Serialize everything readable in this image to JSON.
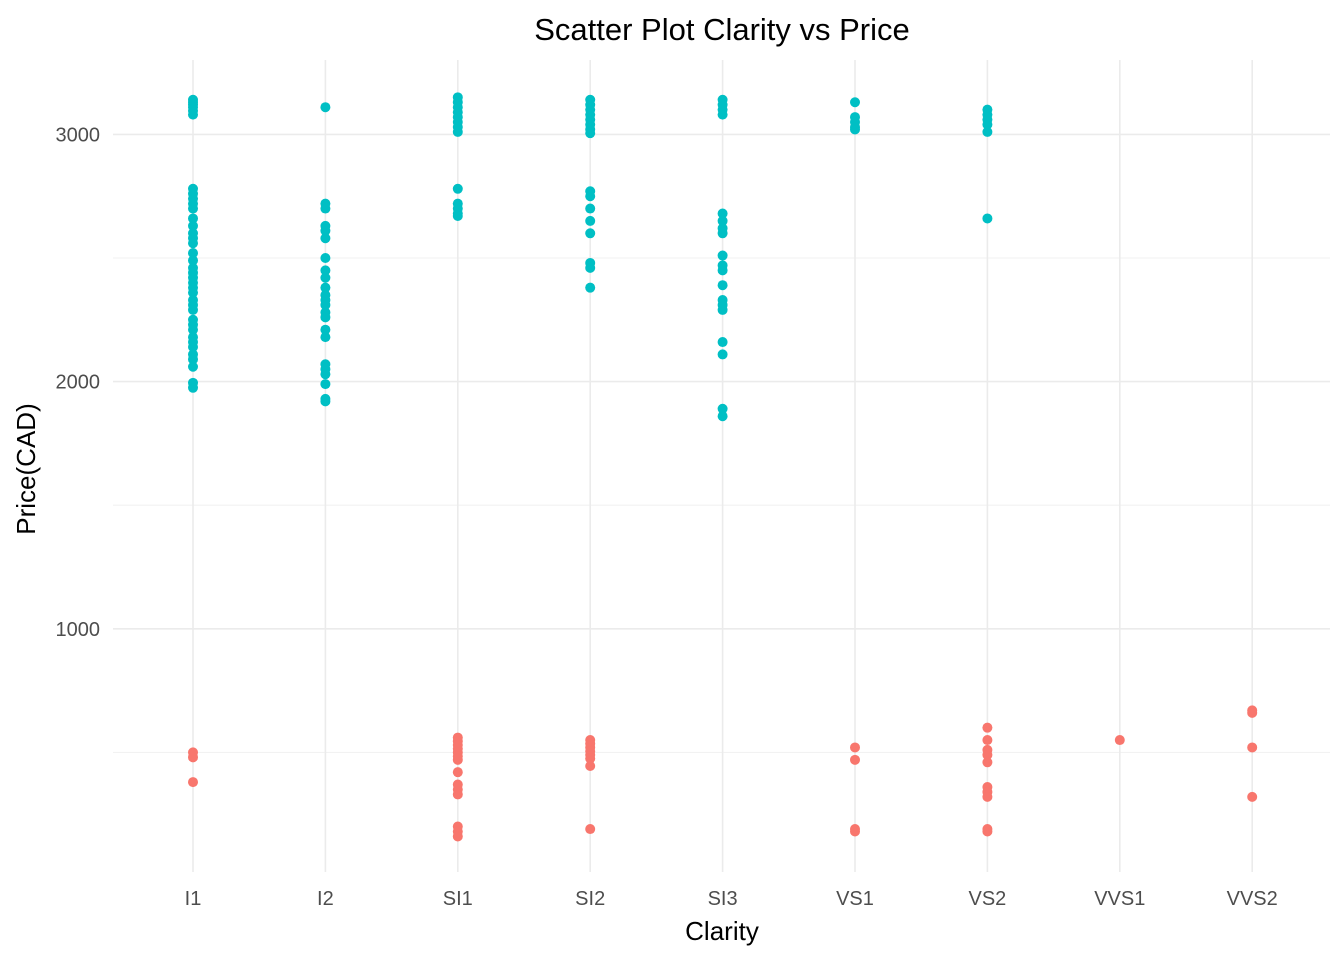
{
  "chart_data": {
    "type": "scatter",
    "title": "Scatter Plot Clarity vs Price",
    "xlabel": "Clarity",
    "ylabel": "Price(CAD)",
    "categories": [
      "I1",
      "I2",
      "SI1",
      "SI2",
      "SI3",
      "VS1",
      "VS2",
      "VVS1",
      "VVS2"
    ],
    "y_ticks": [
      1000,
      2000,
      3000
    ],
    "y_tick_labels": [
      "1000",
      "2000",
      "3000"
    ],
    "ylim": [
      50,
      3320
    ],
    "grid": true,
    "legend": "none",
    "series": [
      {
        "color": "#00BFC4",
        "points": [
          {
            "x": "I1",
            "y": 3140
          },
          {
            "x": "I1",
            "y": 3130
          },
          {
            "x": "I1",
            "y": 3120
          },
          {
            "x": "I1",
            "y": 3110
          },
          {
            "x": "I1",
            "y": 3095
          },
          {
            "x": "I1",
            "y": 3080
          },
          {
            "x": "I1",
            "y": 2780
          },
          {
            "x": "I1",
            "y": 2760
          },
          {
            "x": "I1",
            "y": 2740
          },
          {
            "x": "I1",
            "y": 2720
          },
          {
            "x": "I1",
            "y": 2700
          },
          {
            "x": "I1",
            "y": 2660
          },
          {
            "x": "I1",
            "y": 2630
          },
          {
            "x": "I1",
            "y": 2600
          },
          {
            "x": "I1",
            "y": 2580
          },
          {
            "x": "I1",
            "y": 2560
          },
          {
            "x": "I1",
            "y": 2520
          },
          {
            "x": "I1",
            "y": 2490
          },
          {
            "x": "I1",
            "y": 2460
          },
          {
            "x": "I1",
            "y": 2440
          },
          {
            "x": "I1",
            "y": 2420
          },
          {
            "x": "I1",
            "y": 2400
          },
          {
            "x": "I1",
            "y": 2380
          },
          {
            "x": "I1",
            "y": 2360
          },
          {
            "x": "I1",
            "y": 2330
          },
          {
            "x": "I1",
            "y": 2310
          },
          {
            "x": "I1",
            "y": 2290
          },
          {
            "x": "I1",
            "y": 2250
          },
          {
            "x": "I1",
            "y": 2230
          },
          {
            "x": "I1",
            "y": 2210
          },
          {
            "x": "I1",
            "y": 2180
          },
          {
            "x": "I1",
            "y": 2160
          },
          {
            "x": "I1",
            "y": 2140
          },
          {
            "x": "I1",
            "y": 2110
          },
          {
            "x": "I1",
            "y": 2090
          },
          {
            "x": "I1",
            "y": 2060
          },
          {
            "x": "I1",
            "y": 1995
          },
          {
            "x": "I1",
            "y": 1975
          },
          {
            "x": "I2",
            "y": 3110
          },
          {
            "x": "I2",
            "y": 2720
          },
          {
            "x": "I2",
            "y": 2700
          },
          {
            "x": "I2",
            "y": 2630
          },
          {
            "x": "I2",
            "y": 2610
          },
          {
            "x": "I2",
            "y": 2580
          },
          {
            "x": "I2",
            "y": 2500
          },
          {
            "x": "I2",
            "y": 2450
          },
          {
            "x": "I2",
            "y": 2420
          },
          {
            "x": "I2",
            "y": 2380
          },
          {
            "x": "I2",
            "y": 2350
          },
          {
            "x": "I2",
            "y": 2330
          },
          {
            "x": "I2",
            "y": 2310
          },
          {
            "x": "I2",
            "y": 2280
          },
          {
            "x": "I2",
            "y": 2260
          },
          {
            "x": "I2",
            "y": 2210
          },
          {
            "x": "I2",
            "y": 2180
          },
          {
            "x": "I2",
            "y": 2070
          },
          {
            "x": "I2",
            "y": 2050
          },
          {
            "x": "I2",
            "y": 2030
          },
          {
            "x": "I2",
            "y": 1990
          },
          {
            "x": "I2",
            "y": 1930
          },
          {
            "x": "I2",
            "y": 1920
          },
          {
            "x": "SI1",
            "y": 3150
          },
          {
            "x": "SI1",
            "y": 3130
          },
          {
            "x": "SI1",
            "y": 3110
          },
          {
            "x": "SI1",
            "y": 3090
          },
          {
            "x": "SI1",
            "y": 3070
          },
          {
            "x": "SI1",
            "y": 3050
          },
          {
            "x": "SI1",
            "y": 3030
          },
          {
            "x": "SI1",
            "y": 3010
          },
          {
            "x": "SI1",
            "y": 2780
          },
          {
            "x": "SI1",
            "y": 2720
          },
          {
            "x": "SI1",
            "y": 2700
          },
          {
            "x": "SI1",
            "y": 2680
          },
          {
            "x": "SI1",
            "y": 2670
          },
          {
            "x": "SI2",
            "y": 3140
          },
          {
            "x": "SI2",
            "y": 3120
          },
          {
            "x": "SI2",
            "y": 3100
          },
          {
            "x": "SI2",
            "y": 3080
          },
          {
            "x": "SI2",
            "y": 3060
          },
          {
            "x": "SI2",
            "y": 3040
          },
          {
            "x": "SI2",
            "y": 3020
          },
          {
            "x": "SI2",
            "y": 3005
          },
          {
            "x": "SI2",
            "y": 2770
          },
          {
            "x": "SI2",
            "y": 2750
          },
          {
            "x": "SI2",
            "y": 2700
          },
          {
            "x": "SI2",
            "y": 2650
          },
          {
            "x": "SI2",
            "y": 2600
          },
          {
            "x": "SI2",
            "y": 2480
          },
          {
            "x": "SI2",
            "y": 2460
          },
          {
            "x": "SI2",
            "y": 2380
          },
          {
            "x": "SI3",
            "y": 3140
          },
          {
            "x": "SI3",
            "y": 3120
          },
          {
            "x": "SI3",
            "y": 3100
          },
          {
            "x": "SI3",
            "y": 3080
          },
          {
            "x": "SI3",
            "y": 2680
          },
          {
            "x": "SI3",
            "y": 2650
          },
          {
            "x": "SI3",
            "y": 2620
          },
          {
            "x": "SI3",
            "y": 2600
          },
          {
            "x": "SI3",
            "y": 2510
          },
          {
            "x": "SI3",
            "y": 2470
          },
          {
            "x": "SI3",
            "y": 2450
          },
          {
            "x": "SI3",
            "y": 2390
          },
          {
            "x": "SI3",
            "y": 2330
          },
          {
            "x": "SI3",
            "y": 2310
          },
          {
            "x": "SI3",
            "y": 2290
          },
          {
            "x": "SI3",
            "y": 2160
          },
          {
            "x": "SI3",
            "y": 2110
          },
          {
            "x": "SI3",
            "y": 1890
          },
          {
            "x": "SI3",
            "y": 1860
          },
          {
            "x": "VS1",
            "y": 3130
          },
          {
            "x": "VS1",
            "y": 3070
          },
          {
            "x": "VS1",
            "y": 3050
          },
          {
            "x": "VS1",
            "y": 3030
          },
          {
            "x": "VS1",
            "y": 3020
          },
          {
            "x": "VS2",
            "y": 3100
          },
          {
            "x": "VS2",
            "y": 3080
          },
          {
            "x": "VS2",
            "y": 3060
          },
          {
            "x": "VS2",
            "y": 3040
          },
          {
            "x": "VS2",
            "y": 3010
          },
          {
            "x": "VS2",
            "y": 2660
          }
        ]
      },
      {
        "color": "#F8766D",
        "points": [
          {
            "x": "I1",
            "y": 500
          },
          {
            "x": "I1",
            "y": 480
          },
          {
            "x": "I1",
            "y": 380
          },
          {
            "x": "SI1",
            "y": 560
          },
          {
            "x": "SI1",
            "y": 545
          },
          {
            "x": "SI1",
            "y": 530
          },
          {
            "x": "SI1",
            "y": 515
          },
          {
            "x": "SI1",
            "y": 500
          },
          {
            "x": "SI1",
            "y": 485
          },
          {
            "x": "SI1",
            "y": 470
          },
          {
            "x": "SI1",
            "y": 420
          },
          {
            "x": "SI1",
            "y": 370
          },
          {
            "x": "SI1",
            "y": 350
          },
          {
            "x": "SI1",
            "y": 330
          },
          {
            "x": "SI1",
            "y": 200
          },
          {
            "x": "SI1",
            "y": 180
          },
          {
            "x": "SI1",
            "y": 160
          },
          {
            "x": "SI2",
            "y": 550
          },
          {
            "x": "SI2",
            "y": 535
          },
          {
            "x": "SI2",
            "y": 520
          },
          {
            "x": "SI2",
            "y": 505
          },
          {
            "x": "SI2",
            "y": 490
          },
          {
            "x": "SI2",
            "y": 475
          },
          {
            "x": "SI2",
            "y": 445
          },
          {
            "x": "SI2",
            "y": 190
          },
          {
            "x": "VS1",
            "y": 520
          },
          {
            "x": "VS1",
            "y": 470
          },
          {
            "x": "VS1",
            "y": 190
          },
          {
            "x": "VS1",
            "y": 180
          },
          {
            "x": "VS2",
            "y": 600
          },
          {
            "x": "VS2",
            "y": 550
          },
          {
            "x": "VS2",
            "y": 510
          },
          {
            "x": "VS2",
            "y": 490
          },
          {
            "x": "VS2",
            "y": 460
          },
          {
            "x": "VS2",
            "y": 360
          },
          {
            "x": "VS2",
            "y": 340
          },
          {
            "x": "VS2",
            "y": 320
          },
          {
            "x": "VS2",
            "y": 190
          },
          {
            "x": "VS2",
            "y": 180
          },
          {
            "x": "VVS1",
            "y": 550
          },
          {
            "x": "VVS2",
            "y": 670
          },
          {
            "x": "VVS2",
            "y": 660
          },
          {
            "x": "VVS2",
            "y": 520
          },
          {
            "x": "VVS2",
            "y": 320
          }
        ]
      }
    ]
  }
}
